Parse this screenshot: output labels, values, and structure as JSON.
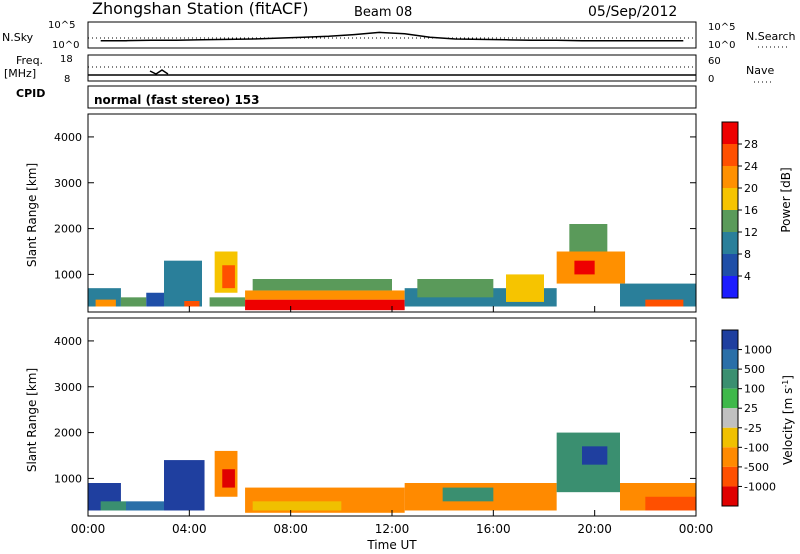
{
  "header": {
    "station_title": "Zhongshan Station (fitACF)",
    "beam_label": "Beam 08",
    "date": "05/Sep/2012"
  },
  "noise_panel": {
    "left_label": "N.Sky",
    "right_label": "N.Search",
    "left_ticks": [
      "10^5",
      "10^0"
    ],
    "right_ticks": [
      "10^5",
      "10^0"
    ]
  },
  "freq_panel": {
    "left_label_1": "Freq.",
    "left_label_2": "[MHz]",
    "left_ticks": [
      "18",
      "8"
    ],
    "right_label": "Nave",
    "right_ticks": [
      "60",
      "0"
    ]
  },
  "cpid_panel": {
    "label": "CPID",
    "text": "normal (fast stereo) 153"
  },
  "power_panel": {
    "ylabel": "Slant Range [km]",
    "yticks": [
      "4000",
      "3000",
      "2000",
      "1000"
    ],
    "colorbar_label": "Power [dB]",
    "colorbar_ticks": [
      "28",
      "24",
      "20",
      "16",
      "12",
      "8",
      "4"
    ],
    "colorbar_colors": [
      "#ee0000",
      "#ff5000",
      "#ff9000",
      "#f6c400",
      "#5a9a5a",
      "#2a7f9a",
      "#1f4fa8",
      "#1c1cff"
    ]
  },
  "velocity_panel": {
    "ylabel": "Slant Range [km]",
    "yticks": [
      "4000",
      "3000",
      "2000",
      "1000"
    ],
    "colorbar_label": "Velocity [m s",
    "colorbar_label_sup": "-1",
    "colorbar_label_end": "]",
    "colorbar_ticks": [
      "1000",
      "500",
      "100",
      "25",
      "-25",
      "-100",
      "-500",
      "-1000"
    ],
    "colorbar_colors": [
      "#1f3f9f",
      "#2a6fa8",
      "#3a8f70",
      "#3fb84a",
      "#c0c0c0",
      "#f0c000",
      "#ff8a00",
      "#ff5000",
      "#e00000"
    ]
  },
  "xaxis": {
    "ticks": [
      "00:00",
      "04:00",
      "08:00",
      "12:00",
      "16:00",
      "20:00",
      "00:00"
    ],
    "label": "Time UT"
  },
  "chart_data": {
    "type": "heatmap",
    "x_range_hours": [
      0,
      24
    ],
    "y_range_km": [
      180,
      4500
    ],
    "power_patches": [
      {
        "t0": 0.0,
        "t1": 1.3,
        "r0": 300,
        "r1": 700,
        "color": "#2a7f9a"
      },
      {
        "t0": 0.3,
        "t1": 1.1,
        "r0": 300,
        "r1": 450,
        "color": "#ff9000"
      },
      {
        "t0": 1.3,
        "t1": 2.3,
        "r0": 300,
        "r1": 500,
        "color": "#5a9a5a"
      },
      {
        "t0": 2.3,
        "t1": 3.0,
        "r0": 300,
        "r1": 600,
        "color": "#1f4fa8"
      },
      {
        "t0": 3.0,
        "t1": 4.5,
        "r0": 300,
        "r1": 1300,
        "color": "#2a7f9a"
      },
      {
        "t0": 3.8,
        "t1": 4.4,
        "r0": 300,
        "r1": 420,
        "color": "#ff5000"
      },
      {
        "t0": 5.0,
        "t1": 5.9,
        "r0": 600,
        "r1": 1500,
        "color": "#f6c400"
      },
      {
        "t0": 5.3,
        "t1": 5.8,
        "r0": 700,
        "r1": 1200,
        "color": "#ff5000"
      },
      {
        "t0": 4.8,
        "t1": 6.2,
        "r0": 300,
        "r1": 500,
        "color": "#5a9a5a"
      },
      {
        "t0": 6.2,
        "t1": 12.5,
        "r0": 220,
        "r1": 450,
        "color": "#ee0000"
      },
      {
        "t0": 6.2,
        "t1": 12.5,
        "r0": 450,
        "r1": 650,
        "color": "#ff9000"
      },
      {
        "t0": 6.5,
        "t1": 12.0,
        "r0": 650,
        "r1": 900,
        "color": "#5a9a5a"
      },
      {
        "t0": 12.5,
        "t1": 18.5,
        "r0": 300,
        "r1": 700,
        "color": "#2a7f9a"
      },
      {
        "t0": 13.0,
        "t1": 16.0,
        "r0": 500,
        "r1": 900,
        "color": "#5a9a5a"
      },
      {
        "t0": 16.5,
        "t1": 18.0,
        "r0": 400,
        "r1": 1000,
        "color": "#f6c400"
      },
      {
        "t0": 18.5,
        "t1": 21.2,
        "r0": 800,
        "r1": 1500,
        "color": "#ff9000"
      },
      {
        "t0": 19.0,
        "t1": 20.5,
        "r0": 1500,
        "r1": 2100,
        "color": "#5a9a5a"
      },
      {
        "t0": 19.2,
        "t1": 20.0,
        "r0": 1000,
        "r1": 1300,
        "color": "#ee0000"
      },
      {
        "t0": 21.0,
        "t1": 24.0,
        "r0": 300,
        "r1": 800,
        "color": "#2a7f9a"
      },
      {
        "t0": 22.0,
        "t1": 23.5,
        "r0": 300,
        "r1": 450,
        "color": "#ff5000"
      }
    ],
    "velocity_patches": [
      {
        "t0": 0.0,
        "t1": 1.3,
        "r0": 300,
        "r1": 900,
        "color": "#1f3f9f"
      },
      {
        "t0": 0.5,
        "t1": 1.5,
        "r0": 300,
        "r1": 500,
        "color": "#3a8f70"
      },
      {
        "t0": 1.5,
        "t1": 3.0,
        "r0": 300,
        "r1": 500,
        "color": "#2a6fa8"
      },
      {
        "t0": 3.0,
        "t1": 4.6,
        "r0": 300,
        "r1": 1400,
        "color": "#1f3f9f"
      },
      {
        "t0": 5.0,
        "t1": 5.9,
        "r0": 600,
        "r1": 1600,
        "color": "#ff8a00"
      },
      {
        "t0": 5.3,
        "t1": 5.8,
        "r0": 800,
        "r1": 1200,
        "color": "#e00000"
      },
      {
        "t0": 6.2,
        "t1": 12.5,
        "r0": 250,
        "r1": 800,
        "color": "#ff8a00"
      },
      {
        "t0": 6.5,
        "t1": 10.0,
        "r0": 300,
        "r1": 500,
        "color": "#f0c000"
      },
      {
        "t0": 12.5,
        "t1": 18.5,
        "r0": 300,
        "r1": 900,
        "color": "#ff8a00"
      },
      {
        "t0": 14.0,
        "t1": 16.0,
        "r0": 500,
        "r1": 800,
        "color": "#3a8f70"
      },
      {
        "t0": 18.5,
        "t1": 21.0,
        "r0": 700,
        "r1": 2000,
        "color": "#3a8f70"
      },
      {
        "t0": 19.5,
        "t1": 20.5,
        "r0": 1300,
        "r1": 1700,
        "color": "#1f3f9f"
      },
      {
        "t0": 21.0,
        "t1": 24.0,
        "r0": 300,
        "r1": 900,
        "color": "#ff8a00"
      },
      {
        "t0": 22.0,
        "t1": 24.0,
        "r0": 300,
        "r1": 600,
        "color": "#ff5000"
      }
    ],
    "noise_sky_log": [
      1.2,
      1.2,
      1.3,
      1.3,
      1.4,
      1.5,
      1.6,
      1.8,
      2.0,
      2.2,
      2.6,
      3.1,
      2.8,
      2.0,
      1.6,
      1.5,
      1.4,
      1.3,
      1.3,
      1.2,
      1.2,
      1.2,
      1.2,
      1.2
    ],
    "freq_mhz_constant": 10.5,
    "nave_constant": 25
  }
}
